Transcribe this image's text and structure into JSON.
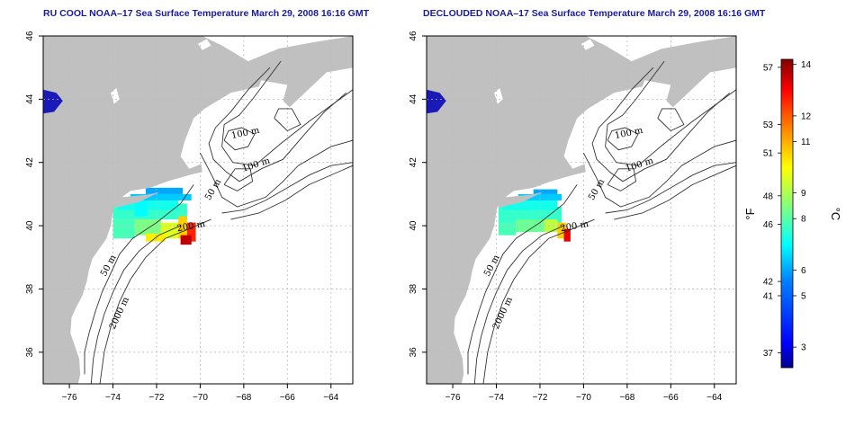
{
  "panels": [
    {
      "title": "RU COOL NOAA–17 Sea Surface Temperature March 29, 2008 16:16 GMT",
      "contour_labels": [
        {
          "text": "100 m",
          "lon": -67.4,
          "lat": 41.85,
          "rot": -18
        },
        {
          "text": "100 m",
          "lon": -67.9,
          "lat": 42.85,
          "rot": -12
        },
        {
          "text": "50 m",
          "lon": -69.3,
          "lat": 41.1,
          "rot": -60
        },
        {
          "text": "200 m",
          "lon": -70.4,
          "lat": 39.9,
          "rot": -10
        },
        {
          "text": "50 m",
          "lon": -74.1,
          "lat": 38.7,
          "rot": -62
        },
        {
          "text": "2000 m",
          "lon": -73.6,
          "lat": 37.2,
          "rot": -65
        }
      ]
    },
    {
      "title": "DECLOUDED NOAA–17 Sea Surface Temperature March 29, 2008 16:16 GMT",
      "contour_labels": [
        {
          "text": "100 m",
          "lon": -67.4,
          "lat": 41.85,
          "rot": -18
        },
        {
          "text": "100 m",
          "lon": -67.9,
          "lat": 42.85,
          "rot": -12
        },
        {
          "text": "50 m",
          "lon": -69.3,
          "lat": 41.1,
          "rot": -60
        },
        {
          "text": "200 m",
          "lon": -70.4,
          "lat": 39.9,
          "rot": -10
        },
        {
          "text": "50 m",
          "lon": -74.1,
          "lat": 38.7,
          "rot": -62
        },
        {
          "text": "2000 m",
          "lon": -73.6,
          "lat": 37.2,
          "rot": -65
        }
      ]
    }
  ],
  "axes": {
    "lon_ticks": [
      -76,
      -74,
      -72,
      -70,
      -68,
      -66,
      -64
    ],
    "lat_ticks": [
      36,
      38,
      40,
      42,
      44,
      46
    ],
    "lon_range": [
      -77.2,
      -63.0
    ],
    "lat_range": [
      35.0,
      46.0
    ]
  },
  "colorbar": {
    "fahrenheit_ticks": [
      57,
      53,
      51,
      48,
      46,
      42,
      41,
      37
    ],
    "celsius_ticks": [
      14,
      12,
      11,
      9,
      8,
      6,
      5,
      3
    ],
    "fahrenheit_label": "°F",
    "celsius_label": "°C",
    "celsius_range": [
      2.2,
      14.2
    ],
    "colors": [
      "#00008f",
      "#0000ff",
      "#0080ff",
      "#00ffff",
      "#80ff80",
      "#ffff00",
      "#ff8000",
      "#ff0000",
      "#800000"
    ]
  },
  "colors": {
    "land": "#c0c0c0",
    "water": "#ffffff",
    "grid": "#bbbbbb",
    "title": "#1a1a9c"
  }
}
